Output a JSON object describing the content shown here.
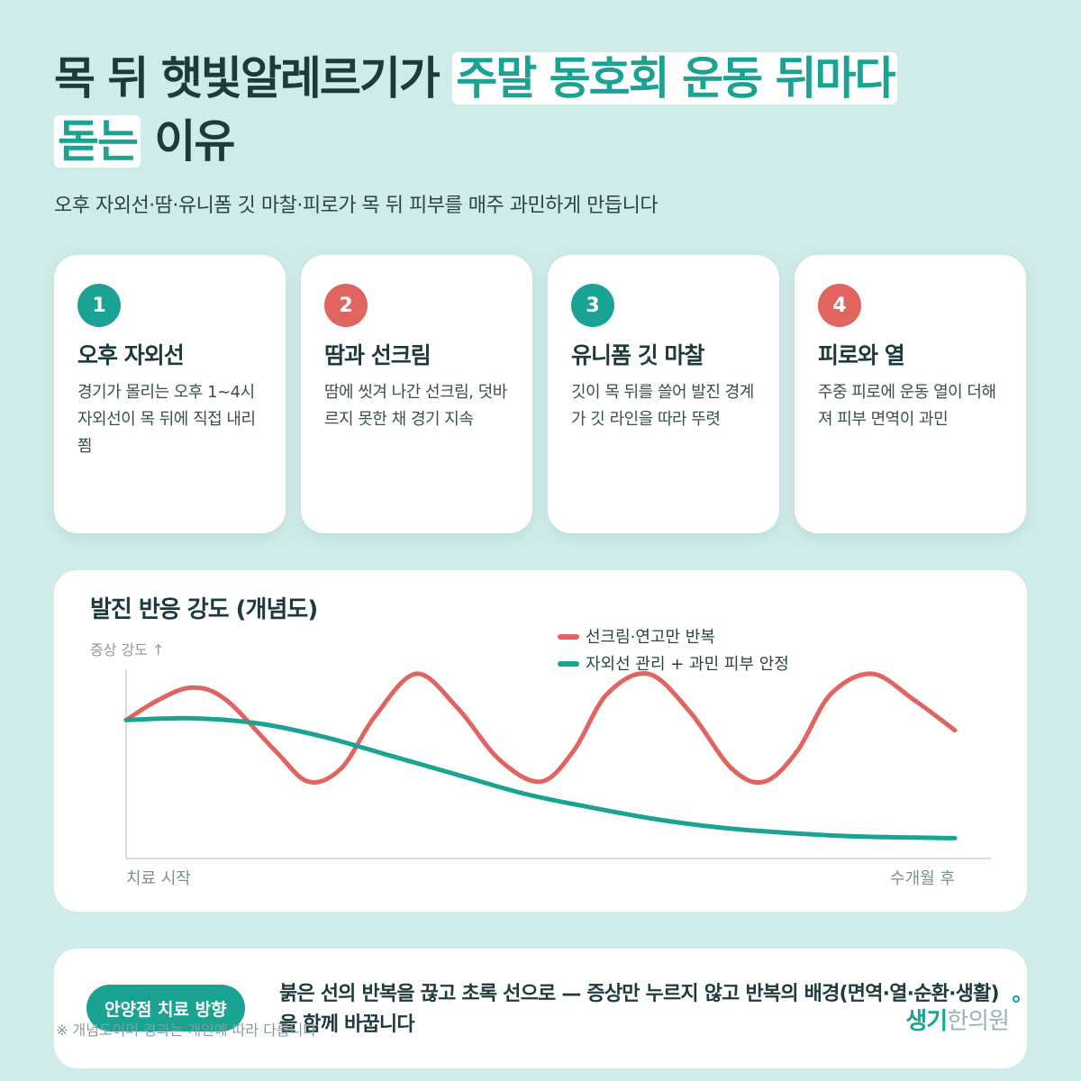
{
  "header": {
    "title_part1": "목 뒤 햇빛알레르기가",
    "title_highlight1": "주말 동호회 운동 뒤마다",
    "title_highlight2": "돋는",
    "title_part2": "이유",
    "subtitle": "오후 자외선·땀·유니폼 깃 마찰·피로가 목 뒤 피부를 매주 과민하게 만듭니다"
  },
  "cards": [
    {
      "num": "1",
      "title": "오후 자외선",
      "desc": "경기가 몰리는 오후 1~4시 자외선이 목 뒤에 직접 내리쬠",
      "color": "#1aa393"
    },
    {
      "num": "2",
      "title": "땀과 선크림",
      "desc": "땀에 씻겨 나간 선크림, 덧바르지 못한 채 경기 지속",
      "color": "#e06460"
    },
    {
      "num": "3",
      "title": "유니폼 깃 마찰",
      "desc": "깃이 목 뒤를 쓸어 발진 경계가 깃 라인을 따라 뚜렷",
      "color": "#1aa393"
    },
    {
      "num": "4",
      "title": "피로와 열",
      "desc": "주중 피로에 운동 열이 더해져 피부 면역이 과민",
      "color": "#e06460"
    }
  ],
  "chart_data": {
    "type": "line",
    "title": "발진 반응 강도 (개념도)",
    "ylabel": "증상 강도 ↑",
    "x_start_label": "치료 시작",
    "x_end_label": "수개월 후",
    "ylim": [
      0,
      1
    ],
    "xlim": [
      0,
      1
    ],
    "legend_position": "top-right",
    "series": [
      {
        "name": "선크림·연고만 반복",
        "color": "#e06460",
        "points": [
          [
            0,
            0.73
          ],
          [
            0.04,
            0.85
          ],
          [
            0.08,
            0.92
          ],
          [
            0.12,
            0.85
          ],
          [
            0.18,
            0.55
          ],
          [
            0.22,
            0.37
          ],
          [
            0.26,
            0.45
          ],
          [
            0.3,
            0.75
          ],
          [
            0.35,
            1.0
          ],
          [
            0.4,
            0.8
          ],
          [
            0.45,
            0.5
          ],
          [
            0.5,
            0.37
          ],
          [
            0.54,
            0.55
          ],
          [
            0.58,
            0.88
          ],
          [
            0.63,
            1.0
          ],
          [
            0.68,
            0.78
          ],
          [
            0.73,
            0.45
          ],
          [
            0.77,
            0.37
          ],
          [
            0.81,
            0.55
          ],
          [
            0.85,
            0.88
          ],
          [
            0.9,
            1.0
          ],
          [
            0.95,
            0.85
          ],
          [
            1.0,
            0.67
          ]
        ]
      },
      {
        "name": "자외선 관리 + 과민 피부 안정",
        "color": "#1aa393",
        "points": [
          [
            0,
            0.73
          ],
          [
            0.08,
            0.74
          ],
          [
            0.16,
            0.71
          ],
          [
            0.24,
            0.63
          ],
          [
            0.32,
            0.52
          ],
          [
            0.4,
            0.41
          ],
          [
            0.48,
            0.3
          ],
          [
            0.56,
            0.22
          ],
          [
            0.64,
            0.15
          ],
          [
            0.72,
            0.1
          ],
          [
            0.8,
            0.07
          ],
          [
            0.88,
            0.05
          ],
          [
            1.0,
            0.04
          ]
        ]
      }
    ]
  },
  "bottom": {
    "pill_label": "안양점 치료 방향",
    "text": "붉은 선의 반복을 끊고 초록 선으로 — 증상만 누르지 않고 반복의 배경(면역·열·순환·생활)을 함께 바꿉니다",
    "footnote": "※ 개념도이며 경과는 개인에 따라 다릅니다",
    "logo_main": "생기",
    "logo_sub": "한의원"
  }
}
